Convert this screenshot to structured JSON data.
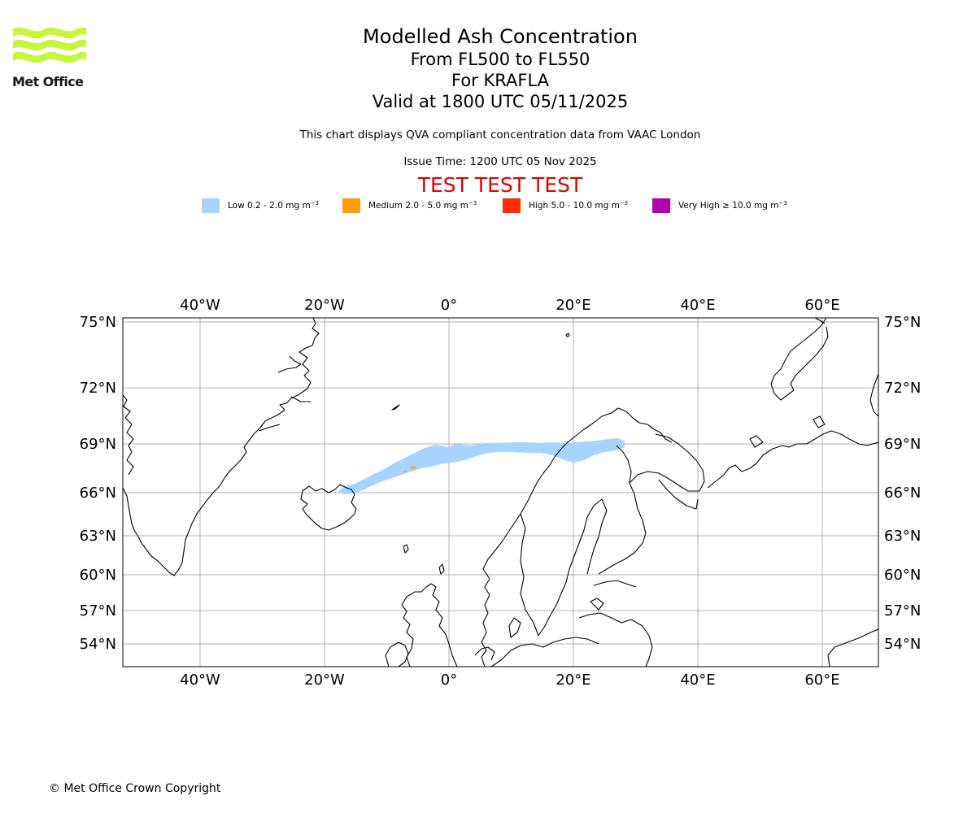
{
  "logo": {
    "text": "Met Office",
    "wave_color": "#c6f53c"
  },
  "title": {
    "line1": "Modelled Ash Concentration",
    "line2": "From FL500 to FL550",
    "line3": "For KRAFLA",
    "line4": "Valid at 1800 UTC 05/11/2025"
  },
  "subtitle": "This chart displays QVA compliant concentration data from VAAC London",
  "issue_time": "Issue Time: 1200 UTC 05 Nov 2025",
  "test_banner": "TEST TEST TEST",
  "legend": [
    {
      "label": "Low 0.2 - 2.0 mg m",
      "color": "#a6d4fe"
    },
    {
      "label": "Medium 2.0 - 5.0 mg m",
      "color": "#ff9c00"
    },
    {
      "label": "High 5.0 - 10.0 mg m",
      "color": "#ff2e00"
    },
    {
      "label": "Very High ≥ 10.0 mg m",
      "color": "#b000b0"
    }
  ],
  "legend_unit_exp": "−3",
  "map": {
    "lon_labels": [
      "40°W",
      "20°W",
      "0°",
      "20°E",
      "40°E",
      "60°E"
    ],
    "lat_labels": [
      "75°N",
      "72°N",
      "69°N",
      "66°N",
      "63°N",
      "60°N",
      "57°N",
      "54°N"
    ],
    "gridline_color": "#b0b0b0",
    "coastline_color": "#000000"
  },
  "copyright": "© Met Office Crown Copyright"
}
